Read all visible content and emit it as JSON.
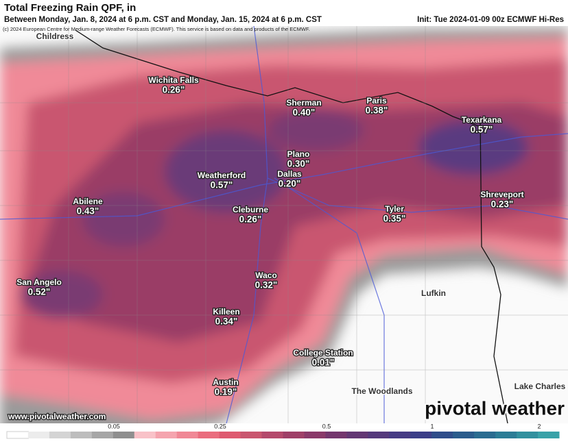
{
  "header": {
    "title": "Total Freezing Rain QPF, in",
    "subtitle": "Between Monday, Jan. 8, 2024 at 6 p.m. CST and Monday, Jan. 15, 2024 at 6 p.m. CST",
    "init": "Init: Tue 2024-01-09 00z ECMWF Hi-Res",
    "credit": "(c) 2024 European Centre for Medium-range Weather Forecasts (ECMWF). This service is based on data and products of the ECMWF."
  },
  "cities": [
    {
      "name": "Childress"
    },
    {
      "name": "Wichita Falls",
      "amount": "0.26\""
    },
    {
      "name": "Sherman",
      "amount": "0.40\""
    },
    {
      "name": "Paris",
      "amount": "0.38\""
    },
    {
      "name": "Texarkana",
      "amount": "0.57\""
    },
    {
      "name": "Plano",
      "amount": "0.30\""
    },
    {
      "name": "Weatherford",
      "amount": "0.57\""
    },
    {
      "name": "Dallas",
      "amount": "0.20\""
    },
    {
      "name": "Abilene",
      "amount": "0.43\""
    },
    {
      "name": "Cleburne",
      "amount": "0.26\""
    },
    {
      "name": "Tyler",
      "amount": "0.35\""
    },
    {
      "name": "Shreveport",
      "amount": "0.23\""
    },
    {
      "name": "Waco",
      "amount": "0.32\""
    },
    {
      "name": "San Angelo",
      "amount": "0.52\""
    },
    {
      "name": "Killeen",
      "amount": "0.34\""
    },
    {
      "name": "Lufkin"
    },
    {
      "name": "College Station",
      "amount": "0.01\""
    },
    {
      "name": "Austin",
      "amount": "0.19\""
    },
    {
      "name": "The Woodlands"
    },
    {
      "name": "Lake Charles"
    }
  ],
  "footer": {
    "website": "www.pivotalweather.com",
    "logo": "pivotal weather"
  },
  "colorbar": {
    "ticks": [
      0.05,
      0.25,
      0.5,
      1,
      2
    ]
  }
}
